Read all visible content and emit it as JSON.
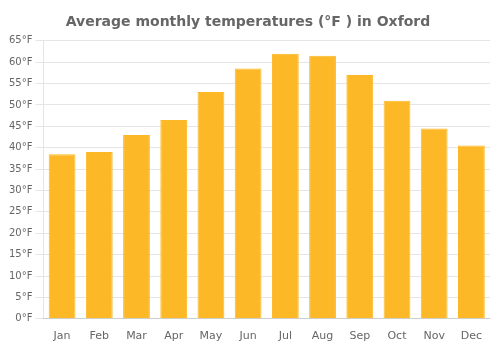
{
  "chart_data": {
    "type": "bar",
    "title": "Average monthly temperatures (°F ) in Oxford",
    "categories": [
      "Jan",
      "Feb",
      "Mar",
      "Apr",
      "May",
      "Jun",
      "Jul",
      "Aug",
      "Sep",
      "Oct",
      "Nov",
      "Dec"
    ],
    "values": [
      38.5,
      39.0,
      43.0,
      46.5,
      53.0,
      58.5,
      62.0,
      61.5,
      57.0,
      51.0,
      44.5,
      40.5
    ],
    "color": "#FDB827",
    "ylim": [
      0,
      65
    ],
    "yticks": [
      {
        "value": 0,
        "label": "0°F"
      },
      {
        "value": 5,
        "label": "5°F"
      },
      {
        "value": 10,
        "label": "10°F"
      },
      {
        "value": 15,
        "label": "15°F"
      },
      {
        "value": 20,
        "label": "20°F"
      },
      {
        "value": 25,
        "label": "25°F"
      },
      {
        "value": 30,
        "label": "30°F"
      },
      {
        "value": 35,
        "label": "35°F"
      },
      {
        "value": 40,
        "label": "40°F"
      },
      {
        "value": 45,
        "label": "45°F"
      },
      {
        "value": 50,
        "label": "50°F"
      },
      {
        "value": 55,
        "label": "55°F"
      },
      {
        "value": 60,
        "label": "60°F"
      },
      {
        "value": 65,
        "label": "65°F"
      }
    ],
    "grid": true
  }
}
